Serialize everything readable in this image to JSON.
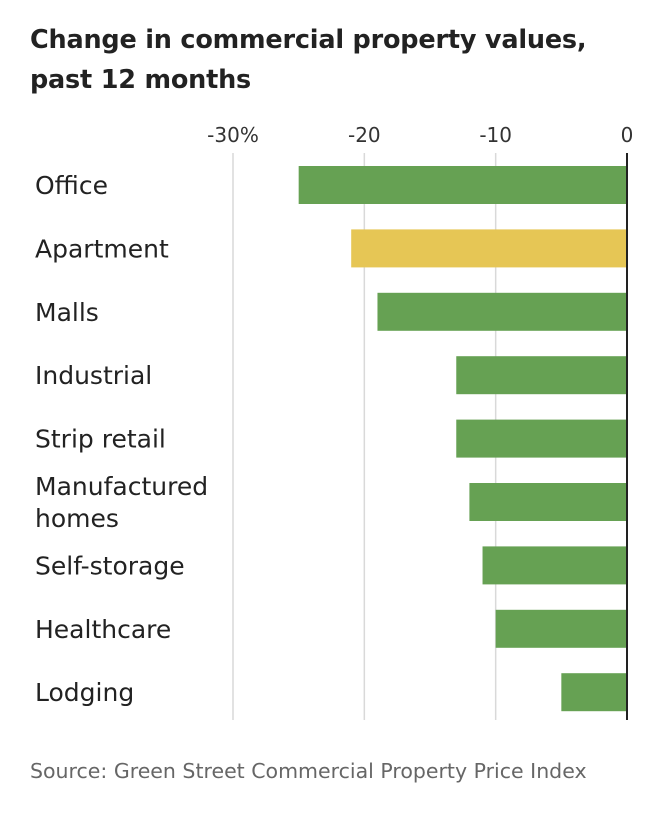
{
  "chart_data": {
    "type": "bar",
    "orientation": "horizontal",
    "title": "Change in commercial property values, past 12 months",
    "categories": [
      "Office",
      "Apartment",
      "Malls",
      "Industrial",
      "Strip retail",
      "Manufactured homes",
      "Self-storage",
      "Healthcare",
      "Lodging"
    ],
    "category_lines": [
      [
        "Office"
      ],
      [
        "Apartment"
      ],
      [
        "Malls"
      ],
      [
        "Industrial"
      ],
      [
        "Strip retail"
      ],
      [
        "Manufactured",
        "homes"
      ],
      [
        "Self-storage"
      ],
      [
        "Healthcare"
      ],
      [
        "Lodging"
      ]
    ],
    "values": [
      -25,
      -21,
      -19,
      -13,
      -13,
      -12,
      -11,
      -10,
      -5
    ],
    "highlight": "Apartment",
    "xlim": [
      -30,
      0
    ],
    "ticks": [
      -30,
      -20,
      -10,
      0
    ],
    "tick_labels": [
      "-30%",
      "-20",
      "-10",
      "0"
    ],
    "grid": true,
    "colors": {
      "bar": "#66a153",
      "highlight": "#e6c655",
      "grid": "#d9d9d9",
      "axis": "#222222"
    }
  },
  "source": "Source: Green Street Commercial Property Price Index"
}
